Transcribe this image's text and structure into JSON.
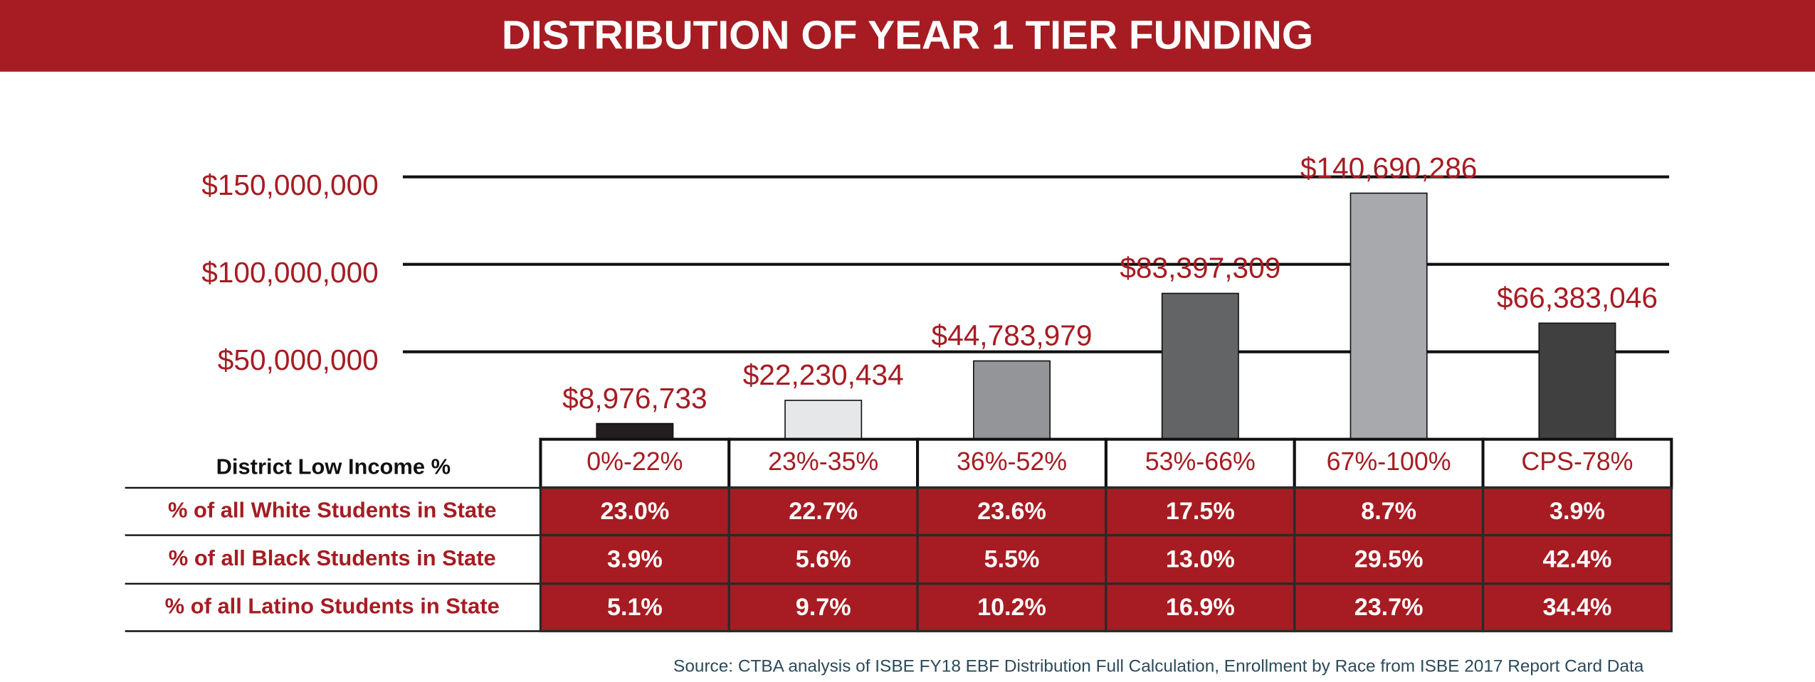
{
  "chart_data": {
    "type": "bar",
    "title": "DISTRIBUTION OF YEAR 1 TIER FUNDING",
    "categories": [
      "0%-22%",
      "23%-35%",
      "36%-52%",
      "53%-66%",
      "67%-100%",
      "CPS-78%"
    ],
    "values": [
      8976733,
      22230434,
      44783979,
      83397309,
      140690286,
      66383046
    ],
    "value_labels": [
      "$8,976,733",
      "$22,230,434",
      "$44,783,979",
      "$83,397,309",
      "$140,690,286",
      "$66,383,046"
    ],
    "colors": [
      "#231f20",
      "#e6e7e8",
      "#939598",
      "#636466",
      "#a7a9ac",
      "#404041"
    ],
    "ylim": [
      0,
      150000000
    ],
    "yticks": [
      {
        "value": 50000000,
        "label": "$50,000,000"
      },
      {
        "value": 100000000,
        "label": "$100,000,000"
      },
      {
        "value": 150000000,
        "label": "$150,000,000"
      }
    ],
    "grid": true,
    "x_label": "District Low Income %",
    "table": {
      "rows": [
        {
          "label": "% of all White Students in State",
          "values": [
            "23.0%",
            "22.7%",
            "23.6%",
            "17.5%",
            "8.7%",
            "3.9%"
          ]
        },
        {
          "label": "% of all Black Students in State",
          "values": [
            "3.9%",
            "5.6%",
            "5.5%",
            "13.0%",
            "29.5%",
            "42.4%"
          ]
        },
        {
          "label": "% of all Latino Students in State",
          "values": [
            "5.1%",
            "9.7%",
            "10.2%",
            "16.9%",
            "23.7%",
            "34.4%"
          ]
        }
      ]
    },
    "source": "Source: CTBA analysis of ISBE FY18 EBF Distribution Full Calculation, Enrollment by Race from ISBE 2017 Report Card Data"
  }
}
